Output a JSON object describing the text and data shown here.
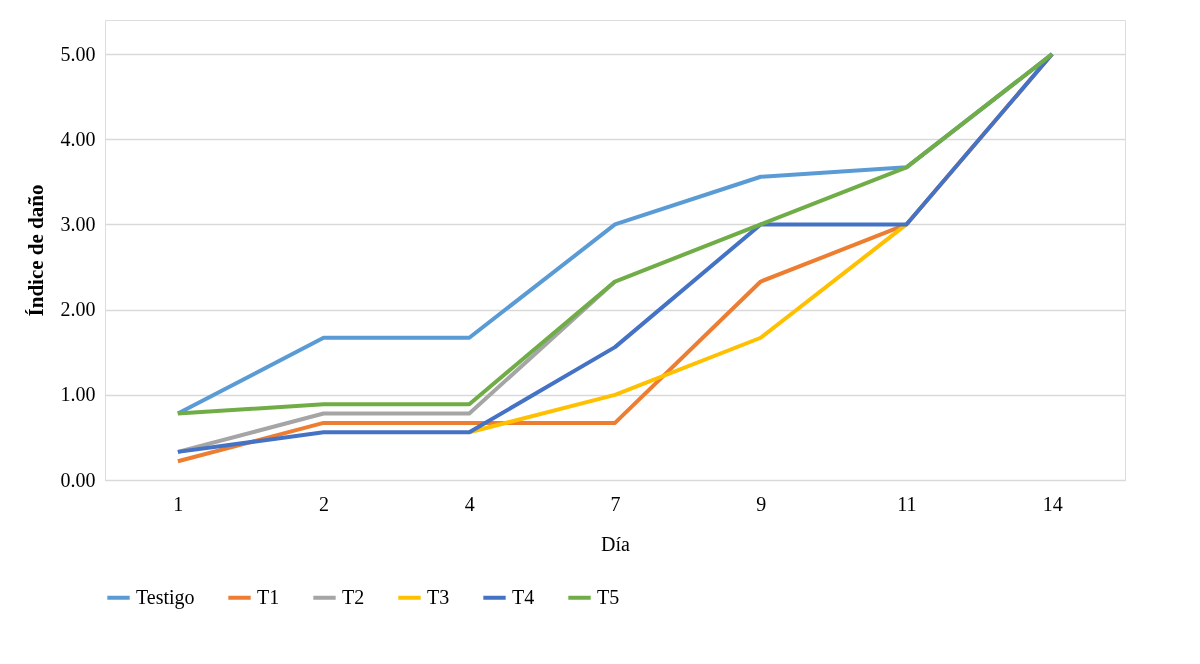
{
  "chart_data": {
    "type": "line",
    "xlabel": "Día",
    "ylabel": "Índice de daño",
    "categories": [
      "1",
      "2",
      "4",
      "7",
      "9",
      "11",
      "14"
    ],
    "series": [
      {
        "name": "Testigo",
        "color": "#5b9bd5",
        "values": [
          0.78,
          1.67,
          1.67,
          3.0,
          3.56,
          3.67,
          5.0
        ]
      },
      {
        "name": "T1",
        "color": "#ed7d31",
        "values": [
          0.22,
          0.67,
          0.67,
          0.67,
          2.33,
          3.0,
          5.0
        ]
      },
      {
        "name": "T2",
        "color": "#a5a5a5",
        "values": [
          0.33,
          0.78,
          0.78,
          2.33,
          null,
          null,
          null
        ]
      },
      {
        "name": "T3",
        "color": "#ffc000",
        "values": [
          null,
          null,
          0.56,
          1.0,
          1.67,
          3.0,
          null
        ]
      },
      {
        "name": "T4",
        "color": "#4472c4",
        "values": [
          0.33,
          0.56,
          0.56,
          1.56,
          3.0,
          3.0,
          5.0
        ]
      },
      {
        "name": "T5",
        "color": "#70ad47",
        "values": [
          0.78,
          0.89,
          0.89,
          2.33,
          3.0,
          3.67,
          5.0
        ]
      }
    ],
    "ylim": [
      0,
      5.4
    ],
    "yticks": [
      {
        "value": 0,
        "label": "0.00"
      },
      {
        "value": 1,
        "label": "1.00"
      },
      {
        "value": 2,
        "label": "2.00"
      },
      {
        "value": 3,
        "label": "3.00"
      },
      {
        "value": 4,
        "label": "4.00"
      },
      {
        "value": 5,
        "label": "5.00"
      }
    ],
    "grid": "y",
    "legend": "bottom",
    "marker": "none",
    "line_style": "solid"
  }
}
